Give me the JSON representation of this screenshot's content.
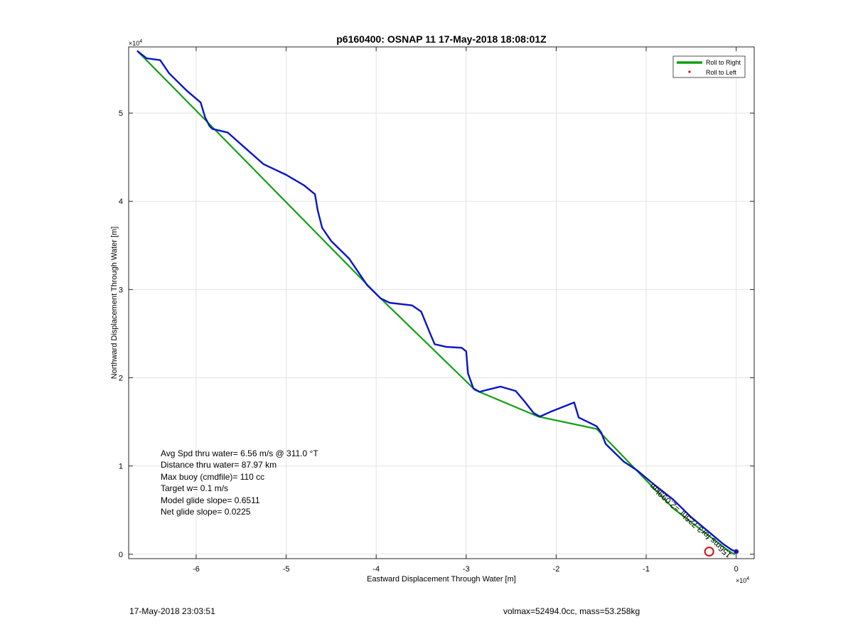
{
  "chart_data": {
    "type": "line",
    "title": "p6160400: OSNAP 11 17-May-2018 18:08:01Z",
    "xlabel": "Eastward Displacement Through Water [m]",
    "ylabel": "Northward Displacement Through Water [m]",
    "x_exponent_label": "×10",
    "y_exponent_label": "×10",
    "exponent": "4",
    "xlim": [
      -6.75,
      0.2
    ],
    "ylim": [
      -0.05,
      5.75
    ],
    "xticks": [
      -6,
      -5,
      -4,
      -3,
      -2,
      -1,
      0
    ],
    "yticks": [
      0,
      1,
      2,
      3,
      4,
      5
    ],
    "xtick_labels": [
      "-6",
      "-5",
      "-4",
      "-3",
      "-2",
      "-1",
      "0"
    ],
    "ytick_labels": [
      "0",
      "1",
      "2",
      "3",
      "4",
      "5"
    ],
    "grid": true,
    "legend_position": "top-right",
    "legend": [
      {
        "name": "Roll to Right",
        "style": "line",
        "color": "#12a012"
      },
      {
        "name": "Roll to Left",
        "style": "dot",
        "color": "#e00000"
      }
    ],
    "series": [
      {
        "name": "Roll to Right",
        "color": "#12a012",
        "x": [
          -6.65,
          -5.8,
          -3.95,
          -2.9,
          -2.2,
          -1.55,
          -0.7,
          -0.1,
          -0.02
        ],
        "y": [
          5.7,
          4.82,
          2.9,
          1.86,
          1.56,
          1.42,
          0.52,
          0.05,
          0.0
        ]
      },
      {
        "name": "",
        "color": "#0a14c8",
        "x": [
          -6.65,
          -6.55,
          -6.4,
          -6.3,
          -6.1,
          -5.95,
          -5.9,
          -5.85,
          -5.82,
          -5.65,
          -5.45,
          -5.25,
          -5.0,
          -4.8,
          -4.68,
          -4.65,
          -4.6,
          -4.5,
          -4.3,
          -4.1,
          -3.95,
          -3.85,
          -3.6,
          -3.5,
          -3.4,
          -3.35,
          -3.22,
          -3.05,
          -3.0,
          -2.98,
          -2.92,
          -2.85,
          -2.78,
          -2.62,
          -2.45,
          -2.35,
          -2.25,
          -2.18,
          -2.05,
          -1.9,
          -1.8,
          -1.75,
          -1.65,
          -1.55,
          -1.5,
          -1.45,
          -1.35,
          -1.25,
          -1.1,
          -0.9,
          -0.7,
          -0.5,
          -0.3,
          -0.15,
          -0.05,
          0.0
        ],
        "y": [
          5.7,
          5.62,
          5.6,
          5.45,
          5.25,
          5.12,
          4.95,
          4.85,
          4.82,
          4.78,
          4.6,
          4.42,
          4.3,
          4.18,
          4.08,
          3.9,
          3.7,
          3.55,
          3.35,
          3.05,
          2.9,
          2.85,
          2.82,
          2.75,
          2.5,
          2.38,
          2.35,
          2.34,
          2.3,
          2.05,
          1.88,
          1.84,
          1.86,
          1.9,
          1.85,
          1.73,
          1.6,
          1.56,
          1.62,
          1.68,
          1.72,
          1.55,
          1.5,
          1.45,
          1.38,
          1.25,
          1.15,
          1.05,
          0.95,
          0.78,
          0.62,
          0.42,
          0.25,
          0.12,
          0.05,
          0.03
        ]
      }
    ],
    "circle_marker": {
      "x": -0.3,
      "y": 0.03,
      "color": "#d01010"
    },
    "diagonal_annotation": "156ms for3.725hr =2.099km",
    "stats_lines": [
      "Avg Spd thru water=  6.56 m/s @ 311.0 °T",
      "Distance thru water= 87.97 km",
      "Max buoy (cmdfile)= 110 cc",
      "Target w= 0.1 m/s",
      "Model glide slope= 0.6511",
      "Net glide slope= 0.0225"
    ]
  },
  "footer": {
    "timestamp": "17-May-2018 23:03:51",
    "summary": "volmax=52494.0cc, mass=53.258kg"
  }
}
